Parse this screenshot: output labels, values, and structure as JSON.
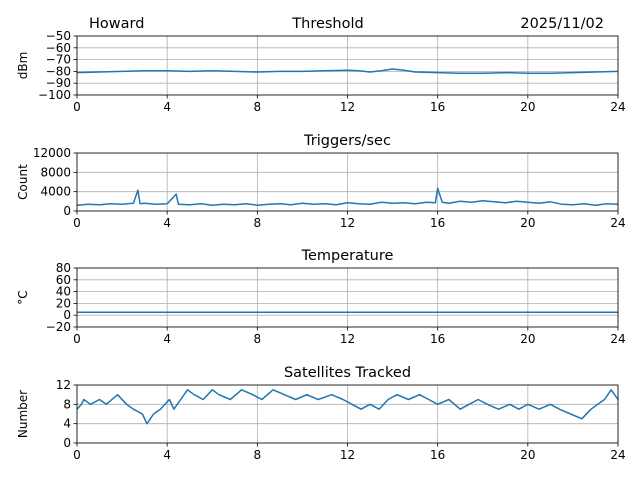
{
  "header": {
    "left": "Howard",
    "center": "Threshold",
    "right": "2025/11/02"
  },
  "colors": {
    "series": "#1f77b4",
    "grid": "#b0b0b0",
    "axes": "#000000"
  },
  "chart_data": [
    {
      "type": "line",
      "title": "",
      "ylabel": "dBm",
      "ylim": [
        -100,
        -50
      ],
      "yticks": [
        -100,
        -90,
        -80,
        -70,
        -60,
        -50
      ],
      "ytick_labels": [
        "−100",
        "−90",
        "−80",
        "−70",
        "−60",
        "−50"
      ],
      "xlim": [
        0,
        24
      ],
      "xticks": [
        0,
        4,
        8,
        12,
        16,
        20,
        24
      ],
      "xtick_labels": [
        "0",
        "4",
        "8",
        "12",
        "16",
        "20",
        "24"
      ],
      "grid": true,
      "series": [
        {
          "x": [
            0,
            1,
            2,
            3,
            4,
            5,
            6,
            7,
            8,
            9,
            10,
            11,
            12,
            12.5,
            13,
            13.5,
            14,
            14.5,
            15,
            16,
            17,
            18,
            19,
            20,
            21,
            22,
            23,
            24
          ],
          "values": [
            -81,
            -80.5,
            -80,
            -79.5,
            -79.5,
            -80,
            -79.5,
            -80,
            -80.5,
            -80,
            -80,
            -79.5,
            -79,
            -79.5,
            -80.5,
            -79.5,
            -78,
            -79,
            -80.5,
            -81,
            -81.5,
            -81.5,
            -81,
            -81.5,
            -81.5,
            -81,
            -80.5,
            -80
          ]
        }
      ]
    },
    {
      "type": "line",
      "title": "Triggers/sec",
      "ylabel": "Count",
      "ylim": [
        0,
        12000
      ],
      "yticks": [
        0,
        4000,
        8000,
        12000
      ],
      "ytick_labels": [
        "0",
        "4000",
        "8000",
        "12000"
      ],
      "xlim": [
        0,
        24
      ],
      "xticks": [
        0,
        4,
        8,
        12,
        16,
        20,
        24
      ],
      "xtick_labels": [
        "0",
        "4",
        "8",
        "12",
        "16",
        "20",
        "24"
      ],
      "grid": true,
      "series": [
        {
          "x": [
            0,
            0.5,
            1,
            1.5,
            2,
            2.5,
            2.7,
            2.8,
            3,
            3.5,
            4,
            4.4,
            4.5,
            5,
            5.5,
            6,
            6.5,
            7,
            7.5,
            8,
            8.5,
            9,
            9.5,
            10,
            10.5,
            11,
            11.5,
            12,
            12.5,
            13,
            13.5,
            14,
            14.5,
            15,
            15.5,
            15.9,
            16,
            16.2,
            16.5,
            17,
            17.5,
            18,
            18.5,
            19,
            19.5,
            20,
            20.5,
            21,
            21.5,
            22,
            22.5,
            23,
            23.5,
            24
          ],
          "values": [
            1200,
            1400,
            1300,
            1500,
            1400,
            1600,
            4300,
            1500,
            1600,
            1400,
            1500,
            3500,
            1400,
            1300,
            1500,
            1200,
            1400,
            1300,
            1500,
            1200,
            1400,
            1500,
            1300,
            1600,
            1400,
            1500,
            1300,
            1700,
            1500,
            1400,
            1800,
            1600,
            1700,
            1500,
            1800,
            1700,
            4700,
            1800,
            1600,
            2000,
            1800,
            2100,
            1900,
            1700,
            2000,
            1800,
            1600,
            1900,
            1400,
            1300,
            1500,
            1200,
            1500,
            1400
          ]
        }
      ]
    },
    {
      "type": "line",
      "title": "Temperature",
      "ylabel": "°C",
      "ylim": [
        -20,
        80
      ],
      "yticks": [
        -20,
        0,
        20,
        40,
        60,
        80
      ],
      "ytick_labels": [
        "−20",
        "0",
        "20",
        "40",
        "60",
        "80"
      ],
      "xlim": [
        0,
        24
      ],
      "xticks": [
        0,
        4,
        8,
        12,
        16,
        20,
        24
      ],
      "xtick_labels": [
        "0",
        "4",
        "8",
        "12",
        "16",
        "20",
        "24"
      ],
      "grid": true,
      "series": [
        {
          "x": [
            0,
            24
          ],
          "values": [
            5,
            5
          ]
        }
      ]
    },
    {
      "type": "line",
      "title": "Satellites Tracked",
      "ylabel": "Number",
      "ylim": [
        0,
        12
      ],
      "yticks": [
        0,
        4,
        8,
        12
      ],
      "ytick_labels": [
        "0",
        "4",
        "8",
        "12"
      ],
      "xlim": [
        0,
        24
      ],
      "xticks": [
        0,
        4,
        8,
        12,
        16,
        20,
        24
      ],
      "xtick_labels": [
        "0",
        "4",
        "8",
        "12",
        "16",
        "20",
        "24"
      ],
      "grid": true,
      "series": [
        {
          "x": [
            0,
            0.2,
            0.3,
            0.6,
            1,
            1.3,
            1.8,
            2.2,
            2.5,
            2.9,
            3.1,
            3.4,
            3.7,
            4.1,
            4.3,
            4.6,
            4.9,
            5.2,
            5.6,
            6,
            6.3,
            6.8,
            7.3,
            7.8,
            8.2,
            8.7,
            9.2,
            9.7,
            10.2,
            10.7,
            11.3,
            11.8,
            12.2,
            12.6,
            13,
            13.4,
            13.8,
            14.2,
            14.7,
            15.2,
            15.6,
            16,
            16.5,
            17,
            17.4,
            17.8,
            18.2,
            18.7,
            19.2,
            19.6,
            20,
            20.5,
            21,
            21.4,
            21.9,
            22.4,
            22.8,
            23.1,
            23.4,
            23.7,
            24
          ],
          "values": [
            7,
            8,
            9,
            8,
            9,
            8,
            10,
            8,
            7,
            6,
            4,
            6,
            7,
            9,
            7,
            9,
            11,
            10,
            9,
            11,
            10,
            9,
            11,
            10,
            9,
            11,
            10,
            9,
            10,
            9,
            10,
            9,
            8,
            7,
            8,
            7,
            9,
            10,
            9,
            10,
            9,
            8,
            9,
            7,
            8,
            9,
            8,
            7,
            8,
            7,
            8,
            7,
            8,
            7,
            6,
            5,
            7,
            8,
            9,
            11,
            9
          ]
        }
      ]
    }
  ]
}
